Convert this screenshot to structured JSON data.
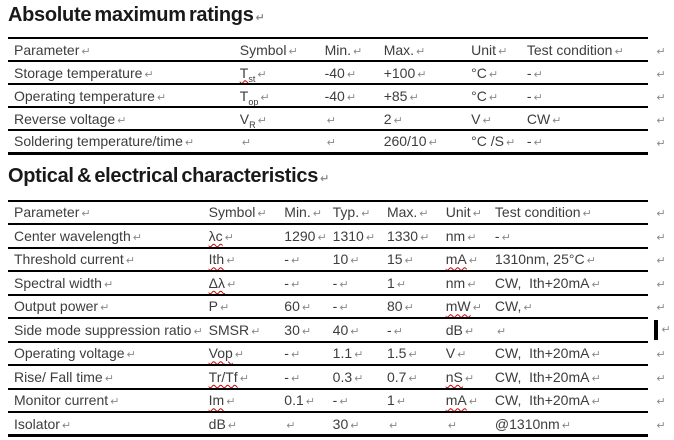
{
  "page_bg": "#ffffff",
  "text_color": "#3d3d3d",
  "border_color": "#000000",
  "spellcheck_color": "#cc0000",
  "marks": {
    "end": "↵"
  },
  "sections": [
    {
      "id": "absolute-maximum-ratings",
      "title": "Absolute maximum ratings",
      "columns": [
        "Parameter",
        "Symbol",
        "Min.",
        "Max.",
        "Unit",
        "Test condition"
      ],
      "rows": [
        {
          "cells": [
            {
              "text": "Storage temperature"
            },
            {
              "text": "T",
              "sub": "st",
              "misspelled": true
            },
            {
              "text": "-40"
            },
            {
              "text": "+100"
            },
            {
              "text": "°C"
            },
            {
              "text": "-"
            }
          ]
        },
        {
          "cells": [
            {
              "text": "Operating temperature"
            },
            {
              "text": "T",
              "sub": "op"
            },
            {
              "text": "-40"
            },
            {
              "text": "+85"
            },
            {
              "text": "°C"
            },
            {
              "text": "-"
            }
          ]
        },
        {
          "cells": [
            {
              "text": "Reverse voltage"
            },
            {
              "text": "V",
              "sub": "R"
            },
            {
              "text": ""
            },
            {
              "text": "2"
            },
            {
              "text": "V"
            },
            {
              "text": "CW"
            }
          ]
        },
        {
          "cells": [
            {
              "text": "Soldering temperature/time"
            },
            {
              "text": ""
            },
            {
              "text": ""
            },
            {
              "text": "260/10"
            },
            {
              "text": "°C /S"
            },
            {
              "text": "-"
            }
          ]
        }
      ]
    },
    {
      "id": "optical-electrical-characteristics",
      "title": "Optical & electrical characteristics",
      "columns": [
        "Parameter",
        "Symbol",
        "Min.",
        "Typ.",
        "Max.",
        "Unit",
        "Test condition"
      ],
      "rows": [
        {
          "cells": [
            {
              "text": "Center wavelength"
            },
            {
              "text": "λc",
              "misspelled": true
            },
            {
              "text": "1290"
            },
            {
              "text": "1310"
            },
            {
              "text": "1330"
            },
            {
              "text": "nm"
            },
            {
              "text": "-"
            }
          ]
        },
        {
          "cells": [
            {
              "text": "Threshold current"
            },
            {
              "text": "Ith",
              "misspelled": true
            },
            {
              "text": "-"
            },
            {
              "text": "10"
            },
            {
              "text": "15"
            },
            {
              "text": "mA",
              "misspelled": true
            },
            {
              "text": "1310nm, 25°C"
            }
          ]
        },
        {
          "cells": [
            {
              "text": "Spectral width"
            },
            {
              "text": "Δλ",
              "misspelled": true
            },
            {
              "text": "-"
            },
            {
              "text": "-"
            },
            {
              "text": "1"
            },
            {
              "text": "nm"
            },
            {
              "text": "CW,  Ith+20mA"
            }
          ]
        },
        {
          "cells": [
            {
              "text": "Output power"
            },
            {
              "text": "P"
            },
            {
              "text": "60"
            },
            {
              "text": "-"
            },
            {
              "text": "80"
            },
            {
              "text": "mW",
              "misspelled": true
            },
            {
              "text": "CW,"
            }
          ]
        },
        {
          "cells": [
            {
              "text": "Side mode suppression ratio"
            },
            {
              "text": "SMSR"
            },
            {
              "text": "30"
            },
            {
              "text": "40"
            },
            {
              "text": "-"
            },
            {
              "text": "dB"
            },
            {
              "text": ""
            }
          ],
          "caret": true
        },
        {
          "cells": [
            {
              "text": "Operating voltage"
            },
            {
              "text": "Vop",
              "misspelled": true
            },
            {
              "text": "-"
            },
            {
              "text": "1.1"
            },
            {
              "text": "1.5"
            },
            {
              "text": "V"
            },
            {
              "text": "CW,  Ith+20mA"
            }
          ]
        },
        {
          "cells": [
            {
              "text": "Rise/ Fall time"
            },
            {
              "text": "Tr/Tf",
              "misspelled": true
            },
            {
              "text": "-"
            },
            {
              "text": "0.3"
            },
            {
              "text": "0.7"
            },
            {
              "text": "nS",
              "misspelled": true
            },
            {
              "text": "CW,  Ith+20mA"
            }
          ]
        },
        {
          "cells": [
            {
              "text": "Monitor current"
            },
            {
              "text": "Im",
              "misspelled": true
            },
            {
              "text": "0.1"
            },
            {
              "text": "-"
            },
            {
              "text": "1"
            },
            {
              "text": "mA",
              "misspelled": true
            },
            {
              "text": "CW,  Ith+20mA"
            }
          ]
        },
        {
          "cells": [
            {
              "text": "Isolator"
            },
            {
              "text": "dB"
            },
            {
              "text": ""
            },
            {
              "text": "30"
            },
            {
              "text": ""
            },
            {
              "text": ""
            },
            {
              "text": "@1310nm"
            }
          ]
        }
      ]
    }
  ]
}
